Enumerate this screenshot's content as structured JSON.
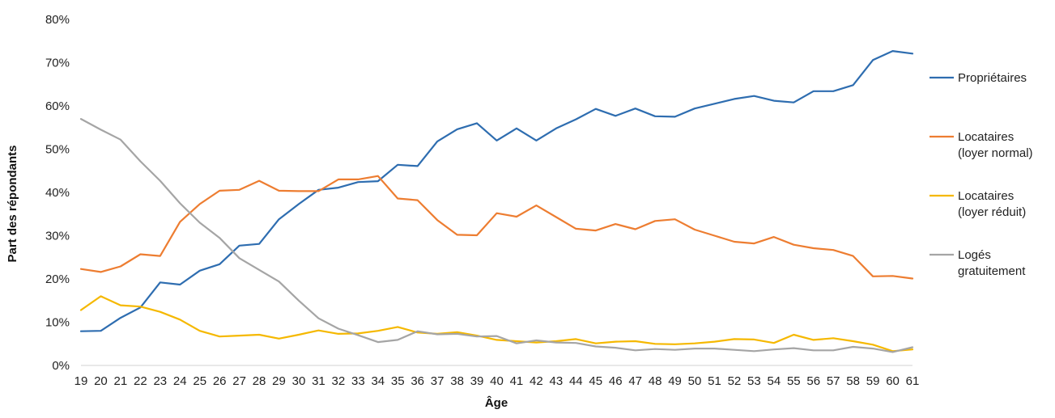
{
  "chart_data": {
    "type": "line",
    "title": "",
    "xlabel": "Âge",
    "ylabel": "Part des répondants",
    "ylim": [
      0,
      80
    ],
    "yticks": [
      "0%",
      "10%",
      "20%",
      "30%",
      "40%",
      "50%",
      "60%",
      "70%",
      "80%"
    ],
    "grid": false,
    "legend_position": "right",
    "x": [
      "19",
      "20",
      "21",
      "22",
      "23",
      "24",
      "25",
      "26",
      "27",
      "28",
      "29",
      "30",
      "31",
      "32",
      "33",
      "34",
      "35",
      "36",
      "37",
      "38",
      "39",
      "40",
      "41",
      "42",
      "43",
      "44",
      "45",
      "46",
      "47",
      "48",
      "49",
      "50",
      "51",
      "52",
      "53",
      "54",
      "55",
      "56",
      "57",
      "58",
      "59",
      "60",
      "61"
    ],
    "series": [
      {
        "name": "Propriétaires",
        "color": "#2E6DB0",
        "values": [
          7.9,
          8.0,
          11.0,
          13.4,
          19.2,
          18.7,
          21.9,
          23.4,
          27.7,
          28.1,
          33.8,
          37.3,
          40.6,
          41.1,
          42.4,
          42.6,
          46.4,
          46.1,
          51.8,
          54.6,
          56.0,
          52.0,
          54.8,
          52.0,
          54.8,
          56.9,
          59.3,
          57.7,
          59.4,
          57.6,
          57.5,
          59.4,
          60.5,
          61.6,
          62.3,
          61.2,
          60.8,
          63.4,
          63.4,
          64.8,
          70.6,
          72.7,
          72.1
        ]
      },
      {
        "name": "Locataires\n(loyer normal)",
        "color": "#ED7D31",
        "values": [
          22.3,
          21.6,
          22.9,
          25.7,
          25.3,
          33.2,
          37.3,
          40.4,
          40.6,
          42.7,
          40.4,
          40.3,
          40.3,
          43.0,
          43.0,
          43.8,
          38.6,
          38.2,
          33.6,
          30.2,
          30.1,
          35.2,
          34.4,
          37.0,
          34.3,
          31.6,
          31.2,
          32.7,
          31.5,
          33.4,
          33.8,
          31.4,
          30.0,
          28.6,
          28.2,
          29.7,
          27.9,
          27.1,
          26.7,
          25.3,
          20.6,
          20.7,
          20.1
        ]
      },
      {
        "name": "Locataires\n(loyer réduit)",
        "color": "#F5B800",
        "values": [
          12.8,
          16.0,
          13.9,
          13.6,
          12.4,
          10.6,
          8.0,
          6.7,
          6.9,
          7.1,
          6.2,
          7.1,
          8.1,
          7.3,
          7.4,
          8.0,
          8.9,
          7.6,
          7.3,
          7.7,
          6.9,
          5.9,
          5.6,
          5.3,
          5.6,
          6.1,
          5.1,
          5.5,
          5.6,
          5.0,
          4.9,
          5.1,
          5.5,
          6.1,
          6.0,
          5.2,
          7.1,
          5.9,
          6.3,
          5.6,
          4.8,
          3.3,
          3.7
        ]
      },
      {
        "name": "Logés\ngratuitement",
        "color": "#A5A5A5",
        "values": [
          57.0,
          54.5,
          52.2,
          47.2,
          42.7,
          37.5,
          33.0,
          29.5,
          24.8,
          22.1,
          19.4,
          15.0,
          10.9,
          8.5,
          7.0,
          5.4,
          5.9,
          7.9,
          7.2,
          7.3,
          6.7,
          6.8,
          5.1,
          5.8,
          5.3,
          5.2,
          4.4,
          4.1,
          3.5,
          3.8,
          3.6,
          3.9,
          3.9,
          3.6,
          3.3,
          3.7,
          4.0,
          3.5,
          3.5,
          4.3,
          3.9,
          3.1,
          4.2
        ]
      }
    ]
  }
}
